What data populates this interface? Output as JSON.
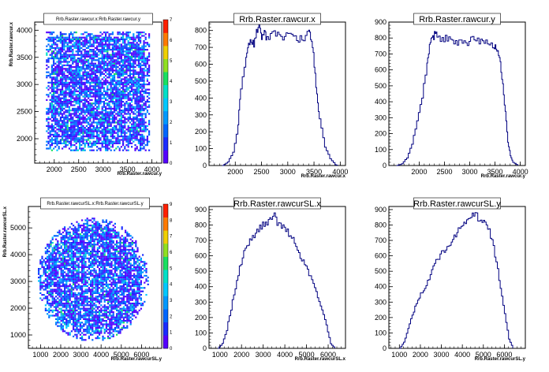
{
  "chart_data": [
    {
      "type": "heatmap",
      "title": "Rrb.Raster.rawcur.x:Rrb.Raster.rawcur.y",
      "xlabel": "Rrb.Raster.rawcur.y",
      "ylabel": "Rrb.Raster.rawcur.x",
      "xlim": [
        1600,
        4200
      ],
      "ylim": [
        1550,
        4150
      ],
      "xticks": [
        2000,
        2500,
        3000,
        3500,
        4000
      ],
      "yticks": [
        2000,
        2500,
        3000,
        3500,
        4000
      ],
      "zlim": [
        0,
        7
      ],
      "zticks": [
        0,
        1,
        2,
        3,
        4,
        5,
        6,
        7
      ],
      "region": {
        "shape": "square",
        "x_range": [
          1800,
          3950
        ],
        "y_range": [
          1800,
          4000
        ]
      }
    },
    {
      "type": "line",
      "title": "Rrb.Raster.rawcur.x",
      "xlabel": "Rrb.Raster.rawcur.x",
      "xlim": [
        1500,
        4100
      ],
      "ylim": [
        0,
        850
      ],
      "xticks": [
        2000,
        2500,
        3000,
        3500,
        4000
      ],
      "yticks": [
        0,
        100,
        200,
        300,
        400,
        500,
        600,
        700,
        800
      ],
      "x": [
        1750,
        1850,
        1950,
        2050,
        2100,
        2200,
        2250,
        2300,
        2350,
        2400,
        2450,
        2500,
        2550,
        2600,
        2700,
        2800,
        2900,
        3000,
        3100,
        3200,
        3300,
        3400,
        3450,
        3500,
        3550,
        3600,
        3700,
        3800,
        3900,
        3950
      ],
      "y": [
        0,
        20,
        80,
        250,
        450,
        660,
        720,
        750,
        720,
        800,
        820,
        770,
        810,
        740,
        790,
        780,
        760,
        780,
        770,
        750,
        760,
        790,
        750,
        600,
        420,
        270,
        110,
        40,
        5,
        0
      ]
    },
    {
      "type": "line",
      "title": "Rrb.Raster.rawcur.y",
      "xlabel": "Rrb.Raster.rawcur.y",
      "xlim": [
        1400,
        4100
      ],
      "ylim": [
        0,
        900
      ],
      "xticks": [
        2000,
        2500,
        3000,
        3500,
        4000
      ],
      "yticks": [
        0,
        100,
        200,
        300,
        400,
        500,
        600,
        700,
        800,
        900
      ],
      "x": [
        1550,
        1650,
        1750,
        1850,
        1950,
        2050,
        2150,
        2200,
        2250,
        2300,
        2350,
        2450,
        2550,
        2650,
        2750,
        2850,
        2950,
        3050,
        3150,
        3250,
        3350,
        3450,
        3500,
        3550,
        3600,
        3650,
        3700,
        3750,
        3800,
        3850,
        3950
      ],
      "y": [
        0,
        10,
        50,
        140,
        270,
        430,
        630,
        750,
        800,
        820,
        810,
        790,
        800,
        770,
        760,
        780,
        750,
        800,
        790,
        770,
        780,
        750,
        740,
        720,
        640,
        500,
        330,
        150,
        60,
        20,
        0
      ]
    },
    {
      "type": "heatmap",
      "title": "Rrb.Raster.rawcurSL.x:Rrb.Raster.rawcurSL.y",
      "xlabel": "Rrb.Raster.rawcurSL.y",
      "ylabel": "Rrb.Raster.rawcurSL.x",
      "xlim": [
        400,
        7000
      ],
      "ylim": [
        500,
        5800
      ],
      "xticks": [
        1000,
        2000,
        3000,
        4000,
        5000,
        6000
      ],
      "yticks": [
        1000,
        2000,
        3000,
        4000,
        5000
      ],
      "zlim": [
        0,
        9
      ],
      "zticks": [
        0,
        1,
        2,
        3,
        4,
        5,
        6,
        7,
        8,
        9
      ],
      "region": {
        "shape": "ellipse",
        "x_range": [
          800,
          6300
        ],
        "y_range": [
          800,
          5400
        ]
      }
    },
    {
      "type": "line",
      "title": "Rrb.Raster.rawcurSL.x",
      "xlabel": "Rrb.Raster.rawcurSL.x",
      "xlim": [
        500,
        6800
      ],
      "ylim": [
        0,
        920
      ],
      "xticks": [
        1000,
        2000,
        3000,
        4000,
        5000,
        6000
      ],
      "yticks": [
        0,
        100,
        200,
        300,
        400,
        500,
        600,
        700,
        800,
        900
      ],
      "x": [
        900,
        1100,
        1300,
        1500,
        1700,
        1900,
        2100,
        2300,
        2500,
        2700,
        2900,
        3100,
        3300,
        3500,
        3700,
        3900,
        4100,
        4300,
        4500,
        4700,
        4900,
        5100,
        5300,
        5500,
        5700,
        5900,
        6100,
        6300
      ],
      "y": [
        0,
        30,
        120,
        260,
        400,
        520,
        620,
        680,
        720,
        760,
        790,
        820,
        830,
        860,
        800,
        780,
        760,
        720,
        660,
        600,
        540,
        480,
        420,
        330,
        250,
        150,
        30,
        0
      ]
    },
    {
      "type": "line",
      "title": "Rrb.Raster.rawcurSL.y",
      "xlabel": "Rrb.Raster.rawcurSL.y",
      "xlim": [
        500,
        7000
      ],
      "ylim": [
        0,
        920
      ],
      "xticks": [
        1000,
        2000,
        3000,
        4000,
        5000,
        6000
      ],
      "yticks": [
        0,
        100,
        200,
        300,
        400,
        500,
        600,
        700,
        800,
        900
      ],
      "x": [
        1000,
        1200,
        1400,
        1600,
        1800,
        2000,
        2200,
        2400,
        2600,
        2800,
        3000,
        3200,
        3400,
        3600,
        3800,
        4000,
        4200,
        4400,
        4600,
        4800,
        5000,
        5200,
        5400,
        5600,
        5800,
        6000,
        6200,
        6400
      ],
      "y": [
        0,
        40,
        130,
        220,
        290,
        350,
        400,
        460,
        520,
        580,
        620,
        650,
        680,
        720,
        760,
        790,
        820,
        850,
        870,
        840,
        810,
        780,
        700,
        560,
        400,
        220,
        60,
        0
      ]
    }
  ]
}
